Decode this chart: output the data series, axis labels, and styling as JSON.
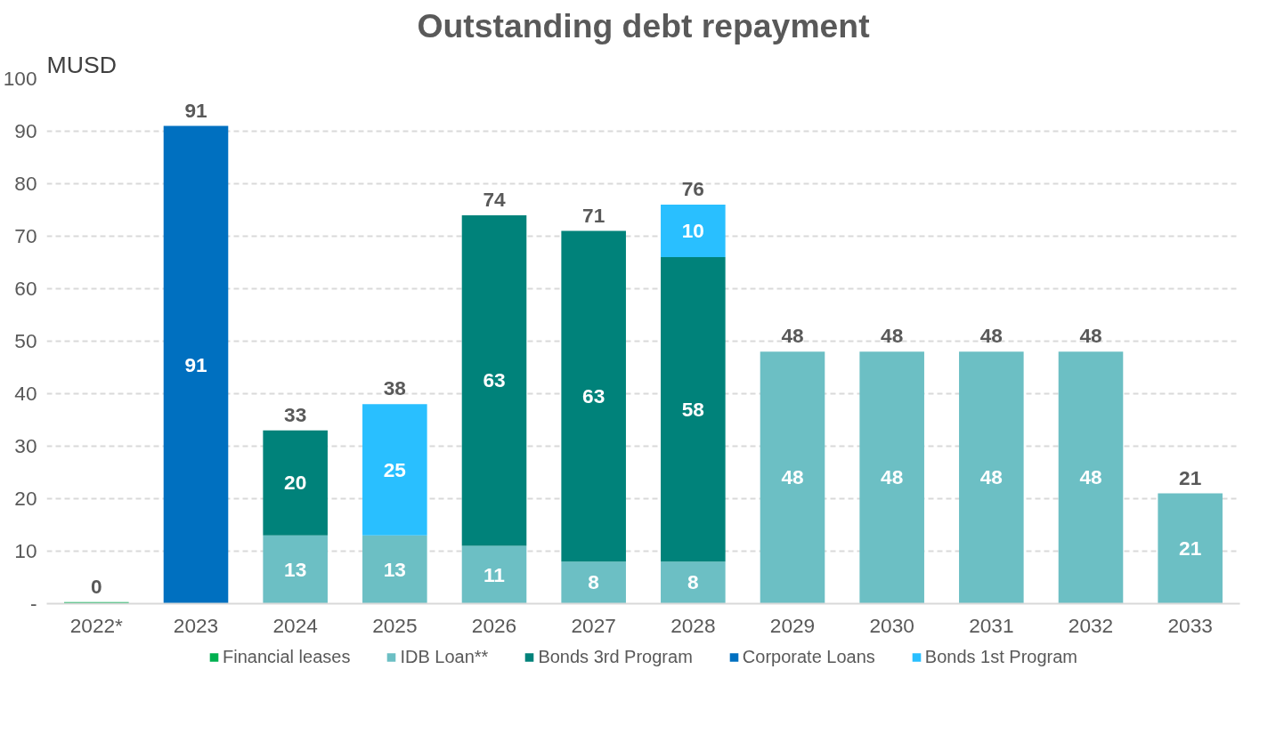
{
  "chart_data": {
    "type": "bar",
    "title": "Outstanding debt repayment",
    "ylabel": "MUSD",
    "stacked": true,
    "categories": [
      "2022*",
      "2023",
      "2024",
      "2025",
      "2026",
      "2027",
      "2028",
      "2029",
      "2030",
      "2031",
      "2032",
      "2033"
    ],
    "series": [
      {
        "name": "Financial leases",
        "color": "#00b050",
        "values": [
          0.3,
          null,
          null,
          null,
          null,
          null,
          null,
          null,
          null,
          null,
          null,
          null
        ],
        "value_labels": [
          null,
          null,
          null,
          null,
          null,
          null,
          null,
          null,
          null,
          null,
          null,
          null
        ]
      },
      {
        "name": "IDB Loan**",
        "color": "#6cbfc4",
        "values": [
          null,
          null,
          13,
          13,
          11,
          8,
          8,
          48,
          48,
          48,
          48,
          21
        ],
        "value_labels": [
          null,
          null,
          "13",
          "13",
          "11",
          "8",
          "8",
          "48",
          "48",
          "48",
          "48",
          "21"
        ]
      },
      {
        "name": "Bonds 3rd Program",
        "color": "#00827a",
        "values": [
          null,
          null,
          20,
          null,
          63,
          63,
          58,
          null,
          null,
          null,
          null,
          null
        ],
        "value_labels": [
          null,
          null,
          "20",
          null,
          "63",
          "63",
          "58",
          null,
          null,
          null,
          null,
          null
        ]
      },
      {
        "name": "Corporate Loans",
        "color": "#0070c0",
        "values": [
          null,
          91,
          null,
          null,
          null,
          null,
          null,
          null,
          null,
          null,
          null,
          null
        ],
        "value_labels": [
          null,
          "91",
          null,
          null,
          null,
          null,
          null,
          null,
          null,
          null,
          null,
          null
        ]
      },
      {
        "name": "Bonds 1st Program",
        "color": "#29bfff",
        "values": [
          null,
          null,
          null,
          25,
          null,
          null,
          10,
          null,
          null,
          null,
          null,
          null
        ],
        "value_labels": [
          null,
          null,
          null,
          "25",
          null,
          null,
          "10",
          null,
          null,
          null,
          null,
          null
        ]
      }
    ],
    "totals": [
      "0",
      "91",
      "33",
      "38",
      "74",
      "71",
      "76",
      "48",
      "48",
      "48",
      "48",
      "21"
    ],
    "ylim": [
      0,
      100
    ],
    "yticks": [
      {
        "value": 0,
        "label": "-"
      },
      10,
      20,
      30,
      40,
      50,
      60,
      70,
      80,
      90,
      100
    ],
    "grid": "y",
    "legend": "bottom"
  }
}
